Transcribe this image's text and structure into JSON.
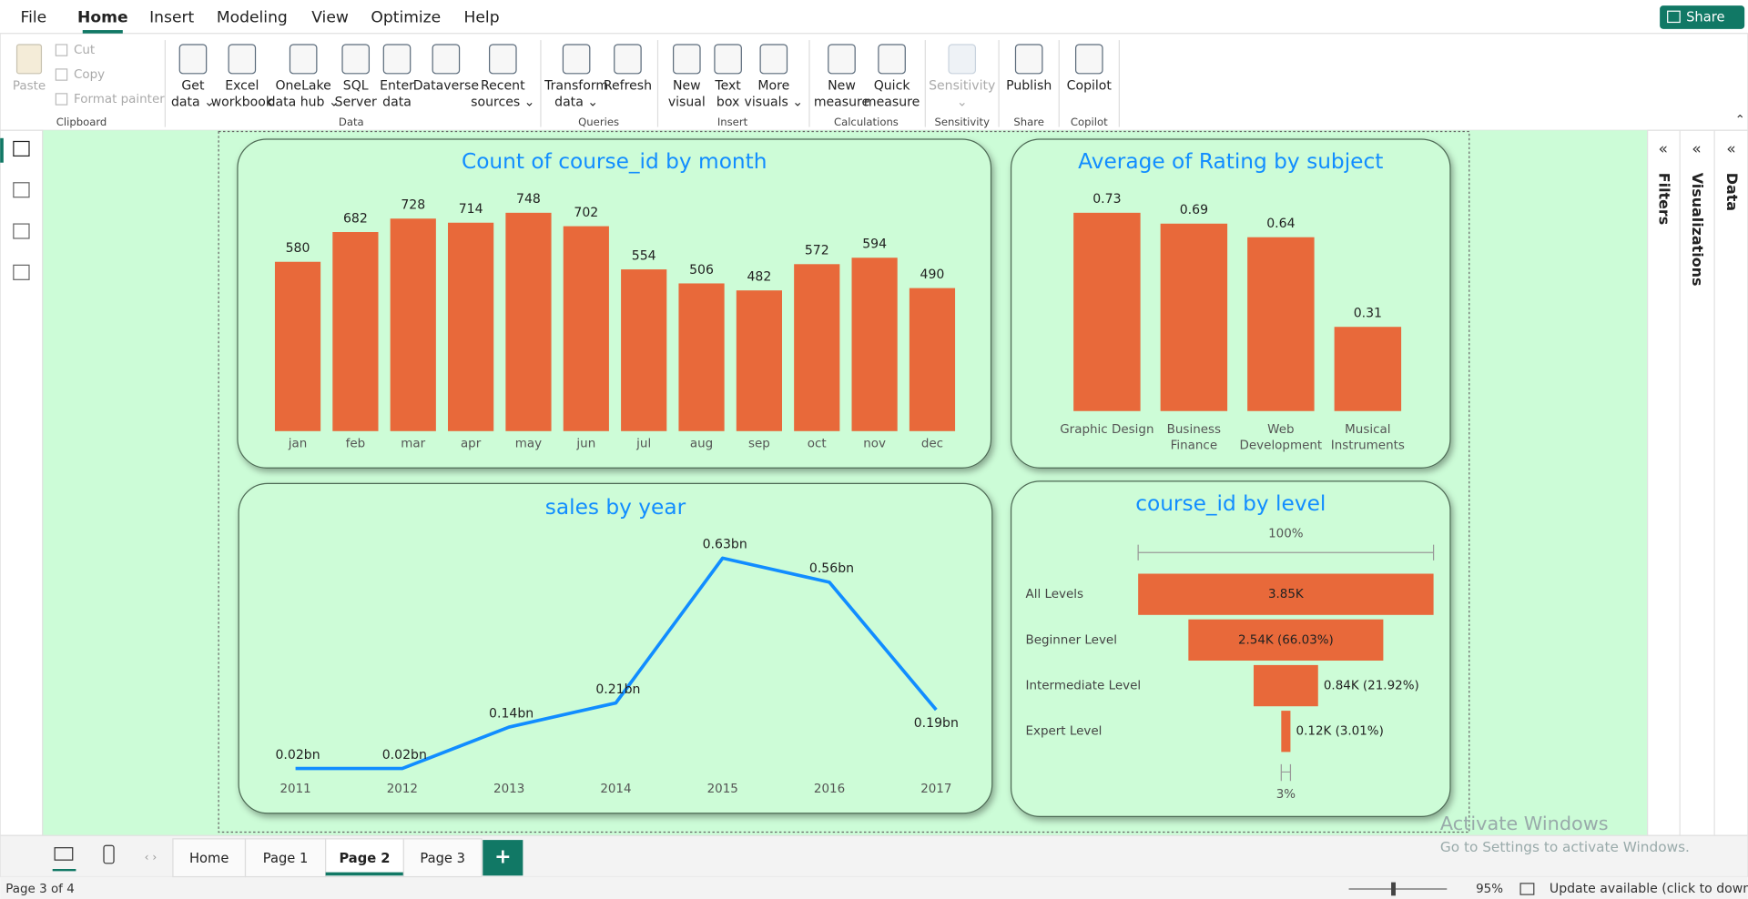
{
  "menu": [
    "File",
    "Home",
    "Insert",
    "Modeling",
    "View",
    "Optimize",
    "Help"
  ],
  "active_menu": 1,
  "share": "Share",
  "clipboard": {
    "name": "Clipboard",
    "items": [
      "Paste",
      "Cut",
      "Copy",
      "Format painter"
    ]
  },
  "ribbon_groups": [
    {
      "name": "Data",
      "items": [
        [
          "Get",
          "data ⌄"
        ],
        [
          "Excel",
          "workbook"
        ],
        [
          "OneLake",
          "data hub ⌄"
        ],
        [
          "SQL",
          "Server"
        ],
        [
          "Enter",
          "data"
        ],
        [
          "Dataverse"
        ],
        [
          "Recent",
          "sources ⌄"
        ]
      ]
    },
    {
      "name": "Queries",
      "items": [
        [
          "Transform",
          "data ⌄"
        ],
        [
          "Refresh"
        ]
      ]
    },
    {
      "name": "Insert",
      "items": [
        [
          "New",
          "visual"
        ],
        [
          "Text",
          "box"
        ],
        [
          "More",
          "visuals ⌄"
        ]
      ]
    },
    {
      "name": "Calculations",
      "items": [
        [
          "New",
          "measure"
        ],
        [
          "Quick",
          "measure"
        ]
      ]
    },
    {
      "name": "Sensitivity",
      "items": [
        [
          "Sensitivity",
          "⌄"
        ]
      ]
    },
    {
      "name": "Share",
      "items": [
        [
          "Publish"
        ]
      ]
    },
    {
      "name": "Copilot",
      "items": [
        [
          "Copilot"
        ]
      ]
    }
  ],
  "panes": [
    "Filters",
    "Visualizations",
    "Data"
  ],
  "visuals": [
    {
      "type": "bar",
      "title": "Count of course_id by month",
      "color": "#e8693a",
      "categories": [
        "jan",
        "feb",
        "mar",
        "apr",
        "may",
        "jun",
        "jul",
        "aug",
        "sep",
        "oct",
        "nov",
        "dec"
      ],
      "values": [
        580,
        682,
        728,
        714,
        748,
        702,
        554,
        506,
        482,
        572,
        594,
        490
      ]
    },
    {
      "type": "bar",
      "title": "Average of Rating by subject",
      "color": "#e8693a",
      "categories": [
        "Graphic Design",
        "Business Finance",
        "Web Development",
        "Musical Instruments"
      ],
      "values": [
        0.73,
        0.69,
        0.64,
        0.31
      ]
    },
    {
      "type": "line",
      "title": "sales by year",
      "color": "#118dff",
      "x": [
        2011,
        2012,
        2013,
        2014,
        2015,
        2016,
        2017
      ],
      "values": [
        0.02,
        0.02,
        0.14,
        0.21,
        0.63,
        0.56,
        0.19
      ],
      "value_labels": [
        "0.02bn",
        "0.02bn",
        "0.14bn",
        "0.21bn",
        "0.63bn",
        "0.56bn",
        "0.19bn"
      ]
    },
    {
      "type": "funnel",
      "title": "course_id by level",
      "color": "#e8693a",
      "categories": [
        "All Levels",
        "Beginner Level",
        "Intermediate Level",
        "Expert Level"
      ],
      "values": [
        3850,
        2540,
        840,
        120
      ],
      "value_labels": [
        "3.85K",
        "2.54K (66.03%)",
        "0.84K (21.92%)",
        "0.12K (3.01%)"
      ],
      "top_label": "100%",
      "bottom_label": "3%"
    }
  ],
  "tabs": [
    "Home",
    "Page 1",
    "Page 2",
    "Page 3"
  ],
  "active_tab": 2,
  "add_tab": "+",
  "status": "Page 3 of 4",
  "zoom": "95%",
  "update": "Update available (click to download)",
  "watermark": [
    "Activate Windows",
    "Go to Settings to activate Windows."
  ]
}
